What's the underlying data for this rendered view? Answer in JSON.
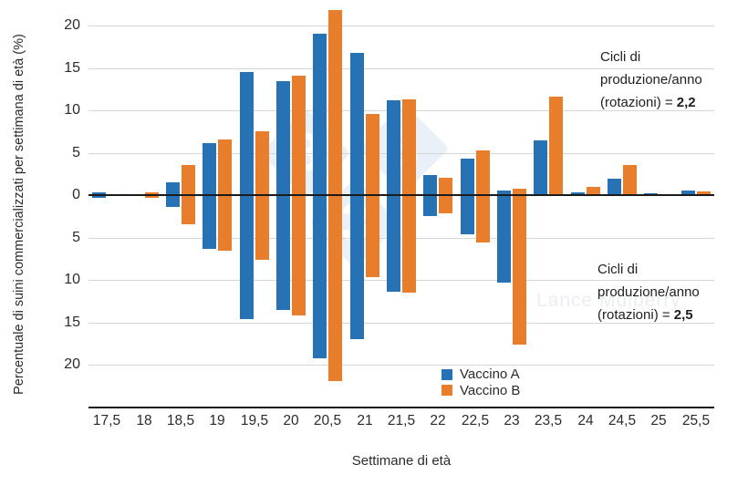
{
  "chart_data": {
    "type": "bar",
    "variant": "diverging-mirrored-vertical",
    "title": "",
    "xlabel": "Settimane di età",
    "ylabel": "Percentuale di suini commercializzati per settimana di età (%)",
    "categories": [
      "17,5",
      "18",
      "18,5",
      "19",
      "19,5",
      "20",
      "20,5",
      "21",
      "21,5",
      "22",
      "22,5",
      "23",
      "23,5",
      "24",
      "24,5",
      "25",
      "25,5"
    ],
    "y_tick_labels_abs": [
      "20",
      "15",
      "10",
      "5",
      "0",
      "5",
      "10",
      "15",
      "20"
    ],
    "y_tick_values": [
      20,
      15,
      10,
      5,
      0,
      -5,
      -10,
      -15,
      -20
    ],
    "ylim": [
      -25,
      22.5
    ],
    "grid": true,
    "series": [
      {
        "name": "Vaccino A",
        "scenario": "2,2 rotazioni",
        "direction": "up",
        "values": [
          0.3,
          0,
          1.5,
          6.1,
          14.5,
          13.4,
          19.0,
          16.8,
          11.2,
          2.4,
          4.3,
          0.5,
          6.4,
          0.3,
          1.9,
          0.2,
          0.5
        ]
      },
      {
        "name": "Vaccino B",
        "scenario": "2,2 rotazioni",
        "direction": "up",
        "values": [
          0,
          0.3,
          3.5,
          6.6,
          7.5,
          14.1,
          21.8,
          9.6,
          11.3,
          2.0,
          5.3,
          0.8,
          11.6,
          1.0,
          3.5,
          0,
          0.4
        ]
      },
      {
        "name": "Vaccino A",
        "scenario": "2,5 rotazioni",
        "direction": "down",
        "values": [
          0.3,
          0,
          1.4,
          6.3,
          14.6,
          13.5,
          19.2,
          17.0,
          11.4,
          2.5,
          4.6,
          10.3,
          0,
          0,
          0,
          0,
          0
        ]
      },
      {
        "name": "Vaccino B",
        "scenario": "2,5 rotazioni",
        "direction": "down",
        "values": [
          0,
          0.3,
          3.4,
          6.6,
          7.6,
          14.2,
          21.9,
          9.7,
          11.5,
          2.1,
          5.6,
          17.6,
          0,
          0,
          0,
          0,
          0
        ]
      }
    ],
    "legend": [
      {
        "label": "Vaccino A",
        "color": "#2772b4"
      },
      {
        "label": "Vaccino B",
        "color": "#e87d2b"
      }
    ],
    "legend_position": "bottom-center",
    "annotations": [
      {
        "line1": "Cicli di",
        "line2": "produzione/anno",
        "line3_prefix": "(rotazioni) = ",
        "value": "2,2",
        "position": "top-right"
      },
      {
        "line1": "Cicli di",
        "line2": "produzione/anno",
        "line3_prefix": "(rotazioni) = ",
        "value": "2,5",
        "position": "bottom-right"
      }
    ]
  },
  "colors": {
    "vaccine_a": "#2772b4",
    "vaccine_b": "#e87d2b",
    "gridline": "#d6d6d6",
    "axis_line": "#1b1b1b",
    "watermark_fill": "#e9f0f8",
    "watermark_text": "#eaeef3"
  },
  "watermark": {
    "logo_digit": "3",
    "registered_mark": "®",
    "name_text": "Lance Mulberry"
  }
}
